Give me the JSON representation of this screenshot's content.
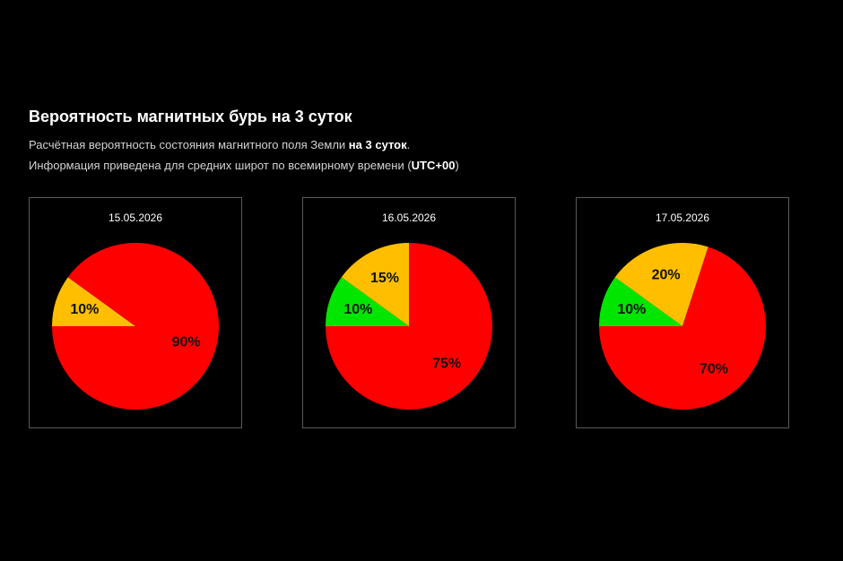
{
  "header": {
    "title": "Вероятность магнитных бурь на 3 суток",
    "line1_prefix": "Расчётная вероятность состояния магнитного поля Земли ",
    "line1_bold": "на 3 суток",
    "line1_suffix": ".",
    "line2_prefix": "Информация приведена для средних широт по всемирному времени (",
    "line2_bold": "UTC+00",
    "line2_suffix": ")"
  },
  "colors": {
    "background": "#000000",
    "green": "#00e600",
    "yellow": "#ffbf00",
    "red": "#ff0000"
  },
  "chart_data": [
    {
      "type": "pie",
      "title": "15.05.2026",
      "slices": [
        {
          "label": "10%",
          "value": 10,
          "color": "#ffbf00"
        },
        {
          "label": "90%",
          "value": 90,
          "color": "#ff0000"
        }
      ]
    },
    {
      "type": "pie",
      "title": "16.05.2026",
      "slices": [
        {
          "label": "10%",
          "value": 10,
          "color": "#00e600"
        },
        {
          "label": "15%",
          "value": 15,
          "color": "#ffbf00"
        },
        {
          "label": "75%",
          "value": 75,
          "color": "#ff0000"
        }
      ]
    },
    {
      "type": "pie",
      "title": "17.05.2026",
      "slices": [
        {
          "label": "10%",
          "value": 10,
          "color": "#00e600"
        },
        {
          "label": "20%",
          "value": 20,
          "color": "#ffbf00"
        },
        {
          "label": "70%",
          "value": 70,
          "color": "#ff0000"
        }
      ]
    }
  ]
}
